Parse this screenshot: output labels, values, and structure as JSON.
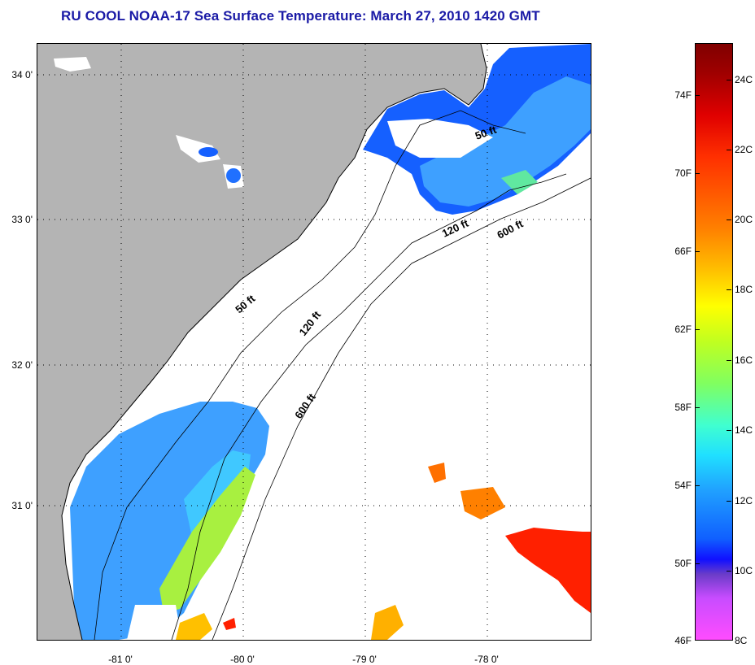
{
  "title": "RU COOL  NOAA-17  Sea Surface Temperature:  March 27, 2010 1420 GMT",
  "map": {
    "lat_labels": [
      "34 0'",
      "33 0'",
      "32 0'",
      "31 0'"
    ],
    "lon_labels": [
      "-81 0'",
      "-80 0'",
      "-79 0'",
      "-78 0'"
    ],
    "contour_labels": [
      "50 ft",
      "120 ft",
      "600 ft",
      "50 ft",
      "120 ft",
      "600 ft"
    ],
    "colors": {
      "land": "#b4b4b4",
      "cold": "#1560ff",
      "cool": "#3ea0ff",
      "mild": "#a8f040",
      "warm": "#ff8000",
      "hot": "#ff2000"
    }
  },
  "colorbar": {
    "fahrenheit": [
      "74F",
      "70F",
      "66F",
      "62F",
      "58F",
      "54F",
      "50F",
      "46F"
    ],
    "celsius": [
      "24C",
      "22C",
      "20C",
      "18C",
      "16C",
      "14C",
      "12C",
      "10C",
      "8C"
    ]
  }
}
